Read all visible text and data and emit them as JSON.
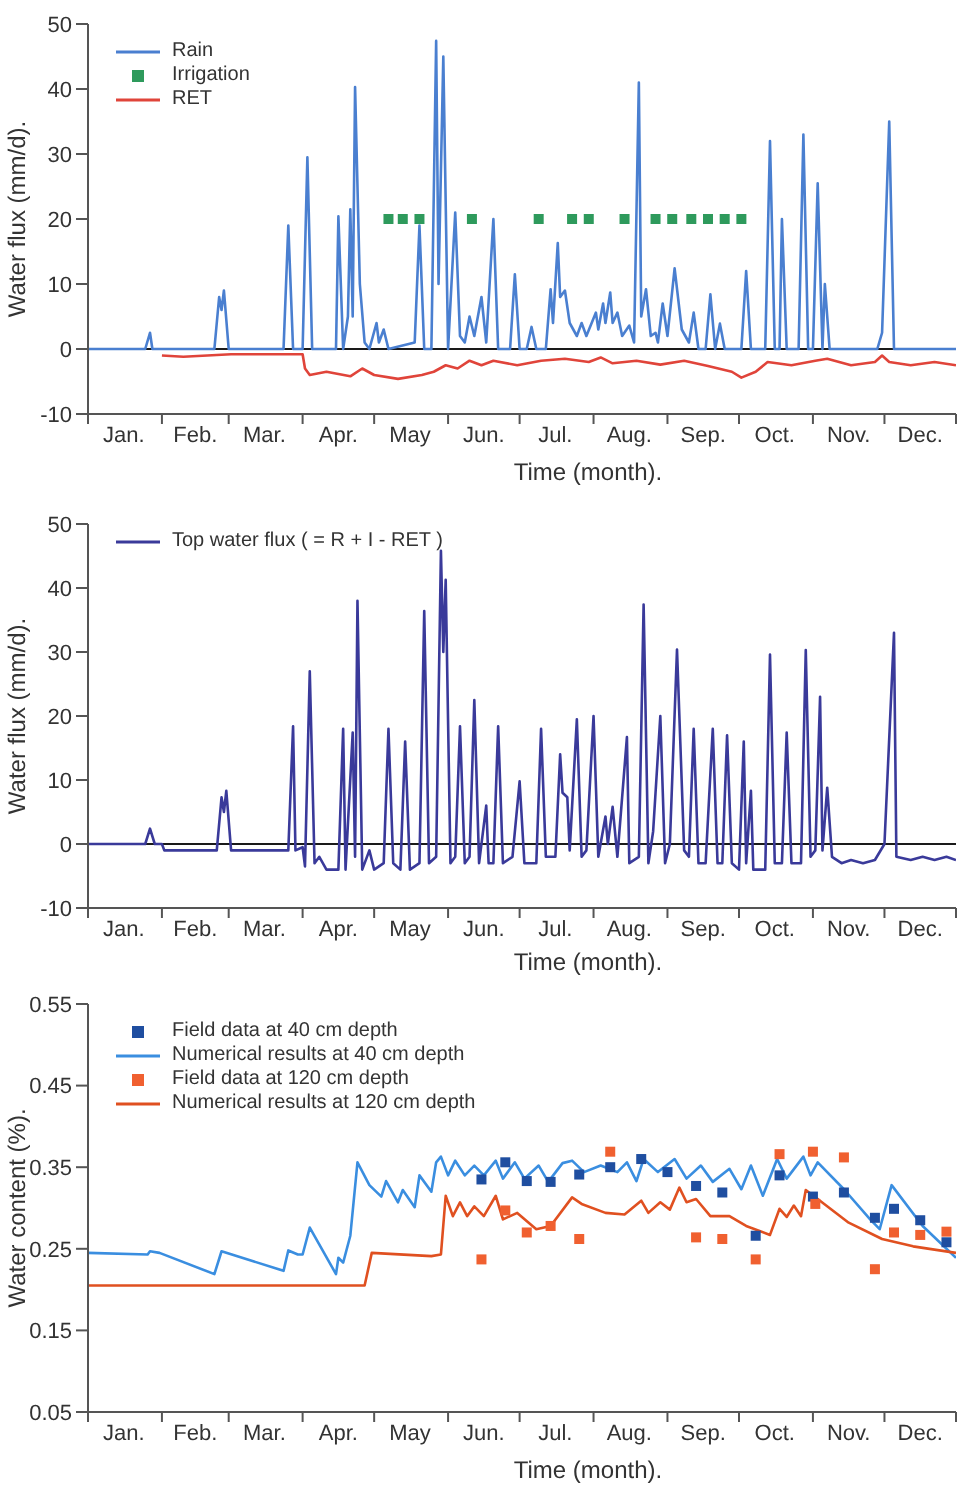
{
  "chart_data": [
    {
      "type": "line",
      "xlabel": "Time (month).",
      "ylabel": "Water flux (mm/d).",
      "xlim": [
        "--01-01",
        "--12-31"
      ],
      "xticks": [
        {
          "value": "--01-01",
          "label": null
        },
        {
          "value": "--01-16",
          "label": "Jan."
        },
        {
          "value": "--02-01",
          "label": null
        },
        {
          "value": "--02-15",
          "label": "Feb."
        },
        {
          "value": "--03-01",
          "label": null
        },
        {
          "value": "--03-16",
          "label": "Mar."
        },
        {
          "value": "--04-01",
          "label": null
        },
        {
          "value": "--04-16",
          "label": "Apr."
        },
        {
          "value": "--05-01",
          "label": null
        },
        {
          "value": "--05-16",
          "label": "May"
        },
        {
          "value": "--06-01",
          "label": null
        },
        {
          "value": "--06-16",
          "label": "Jun."
        },
        {
          "value": "--07-01",
          "label": null
        },
        {
          "value": "--07-16",
          "label": "Jul."
        },
        {
          "value": "--08-01",
          "label": null
        },
        {
          "value": "--08-16",
          "label": "Aug."
        },
        {
          "value": "--09-01",
          "label": null
        },
        {
          "value": "--09-16",
          "label": "Sep."
        },
        {
          "value": "--10-01",
          "label": null
        },
        {
          "value": "--10-16",
          "label": "Oct."
        },
        {
          "value": "--11-01",
          "label": null
        },
        {
          "value": "--11-16",
          "label": "Nov."
        },
        {
          "value": "--12-01",
          "label": null
        },
        {
          "value": "--12-16",
          "label": "Dec."
        },
        {
          "value": "--12-31",
          "label": null
        }
      ],
      "ylim": [
        -10,
        50
      ],
      "yticks": [
        -10,
        0,
        10,
        20,
        30,
        40,
        50
      ],
      "legend": "top left",
      "ref_lines": [
        {
          "axis": "y",
          "value": 0,
          "color": "#1a1a1a"
        }
      ],
      "series": [
        {
          "name": "Rain",
          "color": "#4a7fd0",
          "x": [
            "--01-01",
            "--01-25",
            "--01-27",
            "--01-28",
            "--02-23",
            "--02-25",
            "--02-26",
            "--02-27",
            "--03-01",
            "--03-24",
            "--03-26",
            "--03-28",
            "--04-01",
            "--04-03",
            "--04-05",
            "--04-15",
            "--04-16",
            "--04-18",
            "--04-20",
            "--04-21",
            "--04-22",
            "--04-23",
            "--04-25",
            "--04-27",
            "--04-29",
            "--05-02",
            "--05-03",
            "--05-05",
            "--05-07",
            "--05-18",
            "--05-20",
            "--05-22",
            "--05-25",
            "--05-27",
            "--05-28",
            "--05-30",
            "--06-01",
            "--06-04",
            "--06-06",
            "--06-08",
            "--06-10",
            "--06-12",
            "--06-15",
            "--06-17",
            "--06-20",
            "--06-22",
            "--06-27",
            "--06-29",
            "--07-01",
            "--07-04",
            "--07-06",
            "--07-08",
            "--07-12",
            "--07-14",
            "--07-15",
            "--07-17",
            "--07-18",
            "--07-20",
            "--07-22",
            "--07-25",
            "--07-27",
            "--07-29",
            "--08-02",
            "--08-03",
            "--08-05",
            "--08-06",
            "--08-08",
            "--08-09",
            "--08-11",
            "--08-13",
            "--08-16",
            "--08-18",
            "--08-20",
            "--08-21",
            "--08-23",
            "--08-25",
            "--08-27",
            "--08-28",
            "--08-30",
            "--09-01",
            "--09-04",
            "--09-07",
            "--09-10",
            "--09-12",
            "--09-14",
            "--09-17",
            "--09-19",
            "--09-21",
            "--09-23",
            "--09-25",
            "--10-02",
            "--10-04",
            "--10-06",
            "--10-12",
            "--10-14",
            "--10-16",
            "--10-18",
            "--10-19",
            "--10-21",
            "--10-26",
            "--10-28",
            "--10-30",
            "--11-01",
            "--11-03",
            "--11-05",
            "--11-06",
            "--11-08",
            "--11-28",
            "--11-30",
            "--12-03",
            "--12-05",
            "--12-31"
          ],
          "values": [
            0,
            0,
            2.5,
            0,
            0,
            8,
            6,
            9,
            0,
            0,
            19,
            0,
            0,
            29.5,
            0,
            0,
            20.4,
            0,
            5,
            21.5,
            5,
            40.3,
            10,
            1,
            0,
            4,
            1,
            3,
            0,
            1,
            19,
            0,
            0,
            47.4,
            10,
            45,
            0,
            21,
            2,
            1,
            5,
            2,
            8,
            1,
            20,
            0,
            0,
            11.5,
            0,
            0,
            3.4,
            0,
            0,
            9.2,
            4,
            16.3,
            8,
            9,
            4,
            2,
            4,
            2,
            5.6,
            3,
            7,
            4,
            8.7,
            4,
            5.6,
            2,
            3.6,
            1,
            41,
            5,
            9.2,
            2,
            2.5,
            1,
            7,
            2,
            12.4,
            3,
            1,
            5.6,
            0,
            0,
            8.4,
            0,
            3.9,
            0,
            0,
            12,
            0,
            0,
            32,
            0,
            0,
            20,
            0,
            0,
            33,
            0,
            0,
            25.5,
            0,
            10,
            0,
            0,
            2.5,
            35,
            0,
            0
          ]
        },
        {
          "name": "Irrigation",
          "type": "scatter",
          "marker": "square",
          "color": "#2e9a5c",
          "x": [
            "--05-07",
            "--05-13",
            "--05-20",
            "--06-11",
            "--07-09",
            "--07-23",
            "--07-30",
            "--08-14",
            "--08-27",
            "--09-03",
            "--09-11",
            "--09-18",
            "--09-25",
            "--10-02"
          ],
          "values": [
            20,
            20,
            20,
            20,
            20,
            20,
            20,
            20,
            20,
            20,
            20,
            20,
            20,
            20
          ]
        },
        {
          "name": "RET",
          "color": "#e0443a",
          "x": [
            "--02-01",
            "--02-10",
            "--03-02",
            "--04-01",
            "--04-02",
            "--04-04",
            "--04-11",
            "--04-21",
            "--04-26",
            "--05-01",
            "--05-11",
            "--05-21",
            "--05-26",
            "--05-31",
            "--06-05",
            "--06-10",
            "--06-15",
            "--06-20",
            "--06-30",
            "--07-10",
            "--07-20",
            "--07-30",
            "--08-04",
            "--08-09",
            "--08-19",
            "--08-29",
            "--09-08",
            "--09-18",
            "--09-28",
            "--10-02",
            "--10-08",
            "--10-13",
            "--10-23",
            "--11-02",
            "--11-07",
            "--11-17",
            "--11-27",
            "--11-30",
            "--12-03",
            "--12-12",
            "--12-22",
            "--12-31"
          ],
          "values": [
            -1,
            -1.2,
            -0.8,
            -0.8,
            -3,
            -4,
            -3.5,
            -4.2,
            -3,
            -4,
            -4.6,
            -4,
            -3.5,
            -2.5,
            -3,
            -1.8,
            -2.5,
            -1.8,
            -2.5,
            -1.8,
            -1.5,
            -2,
            -1.3,
            -2.2,
            -1.8,
            -2.4,
            -1.8,
            -2.6,
            -3.5,
            -4.4,
            -3.5,
            -2,
            -2.5,
            -1.8,
            -1.5,
            -2.5,
            -2,
            -1,
            -2,
            -2.5,
            -2,
            -2.5
          ]
        }
      ]
    },
    {
      "type": "line",
      "xlabel": "Time (month).",
      "ylabel": "Water flux (mm/d).",
      "xlim": [
        "--01-01",
        "--12-31"
      ],
      "xticks": [
        {
          "value": "--01-01",
          "label": null
        },
        {
          "value": "--01-16",
          "label": "Jan."
        },
        {
          "value": "--02-01",
          "label": null
        },
        {
          "value": "--02-15",
          "label": "Feb."
        },
        {
          "value": "--03-01",
          "label": null
        },
        {
          "value": "--03-16",
          "label": "Mar."
        },
        {
          "value": "--04-01",
          "label": null
        },
        {
          "value": "--04-16",
          "label": "Apr."
        },
        {
          "value": "--05-01",
          "label": null
        },
        {
          "value": "--05-16",
          "label": "May"
        },
        {
          "value": "--06-01",
          "label": null
        },
        {
          "value": "--06-16",
          "label": "Jun."
        },
        {
          "value": "--07-01",
          "label": null
        },
        {
          "value": "--07-16",
          "label": "Jul."
        },
        {
          "value": "--08-01",
          "label": null
        },
        {
          "value": "--08-16",
          "label": "Aug."
        },
        {
          "value": "--09-01",
          "label": null
        },
        {
          "value": "--09-16",
          "label": "Sep."
        },
        {
          "value": "--10-01",
          "label": null
        },
        {
          "value": "--10-16",
          "label": "Oct."
        },
        {
          "value": "--11-01",
          "label": null
        },
        {
          "value": "--11-16",
          "label": "Nov."
        },
        {
          "value": "--12-01",
          "label": null
        },
        {
          "value": "--12-16",
          "label": "Dec."
        },
        {
          "value": "--12-31",
          "label": null
        }
      ],
      "ylim": [
        -10,
        50
      ],
      "yticks": [
        -10,
        0,
        10,
        20,
        30,
        40,
        50
      ],
      "legend": "top left",
      "ref_lines": [
        {
          "axis": "y",
          "value": 0,
          "color": "#1a1a1a"
        }
      ],
      "series": [
        {
          "name": "Top water flux ( = R + I - RET )",
          "color": "#3a3a9a",
          "x": [
            "--01-01",
            "--01-25",
            "--01-27",
            "--01-29",
            "--02-01",
            "--02-02",
            "--02-24",
            "--02-26",
            "--02-27",
            "--02-28",
            "--03-02",
            "--03-26",
            "--03-28",
            "--03-29",
            "--04-01",
            "--04-02",
            "--04-04",
            "--04-06",
            "--04-08",
            "--04-11",
            "--04-16",
            "--04-18",
            "--04-19",
            "--04-22",
            "--04-23",
            "--04-24",
            "--04-26",
            "--04-29",
            "--05-01",
            "--05-05",
            "--05-07",
            "--05-09",
            "--05-12",
            "--05-14",
            "--05-16",
            "--05-20",
            "--05-22",
            "--05-24",
            "--05-27",
            "--05-29",
            "--05-30",
            "--05-31",
            "--06-02",
            "--06-04",
            "--06-06",
            "--06-08",
            "--06-10",
            "--06-12",
            "--06-14",
            "--06-17",
            "--06-18",
            "--06-20",
            "--06-22",
            "--06-24",
            "--06-28",
            "--07-01",
            "--07-03",
            "--07-08",
            "--07-10",
            "--07-12",
            "--07-16",
            "--07-18",
            "--07-19",
            "--07-21",
            "--07-22",
            "--07-25",
            "--07-27",
            "--07-29",
            "--08-01",
            "--08-03",
            "--08-06",
            "--08-07",
            "--08-09",
            "--08-11",
            "--08-15",
            "--08-16",
            "--08-20",
            "--08-22",
            "--08-24",
            "--08-26",
            "--08-29",
            "--08-31",
            "--09-02",
            "--09-05",
            "--09-08",
            "--09-10",
            "--09-12",
            "--09-14",
            "--09-17",
            "--09-20",
            "--09-22",
            "--09-24",
            "--09-26",
            "--09-28",
            "--10-01",
            "--10-03",
            "--10-04",
            "--10-06",
            "--10-07",
            "--10-12",
            "--10-14",
            "--10-16",
            "--10-19",
            "--10-21",
            "--10-23",
            "--10-27",
            "--10-29",
            "--10-31",
            "--11-02",
            "--11-04",
            "--11-05",
            "--11-07",
            "--11-09",
            "--11-13",
            "--11-17",
            "--11-22",
            "--11-27",
            "--12-01",
            "--12-05",
            "--12-06",
            "--12-12",
            "--12-17",
            "--12-22",
            "--12-27",
            "--12-31"
          ],
          "values": [
            0,
            0,
            2.4,
            0,
            0,
            -1,
            -1,
            7.3,
            5,
            8.3,
            -1,
            -1,
            18.4,
            -1,
            -0.5,
            -3.5,
            27,
            -3,
            -2,
            -4,
            -4,
            18,
            -4,
            17.4,
            -2,
            38,
            -4,
            -1,
            -4,
            -3,
            18,
            -3,
            -4,
            16,
            -4,
            -3,
            36.4,
            -3,
            -2,
            45.8,
            30,
            41.3,
            -3,
            -2,
            18.4,
            -3,
            -2,
            22.5,
            -3,
            6,
            -3,
            -3,
            18.4,
            -3,
            -2,
            9.8,
            -3,
            -3,
            18,
            -2,
            -2,
            14,
            8,
            7.3,
            -1,
            19.5,
            -2,
            -1,
            20,
            -2,
            4.3,
            0,
            5.8,
            -2,
            16.7,
            -3,
            -2,
            37.4,
            -3,
            2,
            20,
            -3,
            0,
            30.4,
            -1,
            -2,
            18,
            -3,
            -3,
            18,
            -3,
            -3,
            17,
            -3,
            -4,
            16,
            -3,
            8.3,
            -4,
            -4,
            29.6,
            -3,
            -3,
            17.4,
            -3,
            -3,
            30.3,
            -2,
            -1,
            23,
            -1,
            8.8,
            -2,
            -3,
            -2.5,
            -3,
            -2.5,
            0,
            33,
            -2,
            -2.5,
            -2,
            -2.5,
            -2,
            -2.5
          ]
        }
      ]
    },
    {
      "type": "line",
      "xlabel": "Time (month).",
      "ylabel": "Water content (%).",
      "xlim": [
        "--01-01",
        "--12-31"
      ],
      "xticks": [
        {
          "value": "--01-01",
          "label": null
        },
        {
          "value": "--01-16",
          "label": "Jan."
        },
        {
          "value": "--02-01",
          "label": null
        },
        {
          "value": "--02-15",
          "label": "Feb."
        },
        {
          "value": "--03-01",
          "label": null
        },
        {
          "value": "--03-16",
          "label": "Mar."
        },
        {
          "value": "--04-01",
          "label": null
        },
        {
          "value": "--04-16",
          "label": "Apr."
        },
        {
          "value": "--05-01",
          "label": null
        },
        {
          "value": "--05-16",
          "label": "May"
        },
        {
          "value": "--06-01",
          "label": null
        },
        {
          "value": "--06-16",
          "label": "Jun."
        },
        {
          "value": "--07-01",
          "label": null
        },
        {
          "value": "--07-16",
          "label": "Jul."
        },
        {
          "value": "--08-01",
          "label": null
        },
        {
          "value": "--08-16",
          "label": "Aug."
        },
        {
          "value": "--09-01",
          "label": null
        },
        {
          "value": "--09-16",
          "label": "Sep."
        },
        {
          "value": "--10-01",
          "label": null
        },
        {
          "value": "--10-16",
          "label": "Oct."
        },
        {
          "value": "--11-01",
          "label": null
        },
        {
          "value": "--11-16",
          "label": "Nov."
        },
        {
          "value": "--12-01",
          "label": null
        },
        {
          "value": "--12-16",
          "label": "Dec."
        },
        {
          "value": "--12-31",
          "label": null
        }
      ],
      "ylim": [
        0.05,
        0.55
      ],
      "yticks": [
        0.05,
        0.15,
        0.25,
        0.35,
        0.45,
        0.55
      ],
      "legend": "top left",
      "series": [
        {
          "name": "Field data at 40 cm depth",
          "type": "scatter",
          "marker": "square",
          "color": "#1f4ea0",
          "x": [
            "--06-15",
            "--06-25",
            "--07-04",
            "--07-14",
            "--07-26",
            "--08-08",
            "--08-21",
            "--09-01",
            "--09-13",
            "--09-24",
            "--10-08",
            "--10-18",
            "--11-01",
            "--11-14",
            "--11-27",
            "--12-05",
            "--12-16",
            "--12-27"
          ],
          "values": [
            0.335,
            0.356,
            0.333,
            0.332,
            0.341,
            0.35,
            0.36,
            0.344,
            0.327,
            0.319,
            0.266,
            0.34,
            0.314,
            0.319,
            0.288,
            0.299,
            0.285,
            0.258
          ]
        },
        {
          "name": "Numerical results at 40 cm depth",
          "color": "#3a8ee0",
          "x": [
            "--01-01",
            "--01-26",
            "--01-27",
            "--01-31",
            "--02-23",
            "--02-26",
            "--03-24",
            "--03-26",
            "--03-30",
            "--04-01",
            "--04-04",
            "--04-15",
            "--04-16",
            "--04-18",
            "--04-21",
            "--04-24",
            "--04-29",
            "--05-04",
            "--05-06",
            "--05-11",
            "--05-13",
            "--05-18",
            "--05-20",
            "--05-25",
            "--05-27",
            "--05-29",
            "--06-01",
            "--06-04",
            "--06-08",
            "--06-12",
            "--06-16",
            "--06-21",
            "--06-24",
            "--06-29",
            "--07-03",
            "--07-09",
            "--07-13",
            "--07-19",
            "--07-23",
            "--07-28",
            "--08-04",
            "--08-11",
            "--08-15",
            "--08-19",
            "--08-22",
            "--08-28",
            "--09-04",
            "--09-09",
            "--09-15",
            "--09-20",
            "--09-27",
            "--10-02",
            "--10-06",
            "--10-11",
            "--10-17",
            "--10-21",
            "--10-28",
            "--10-31",
            "--11-03",
            "--11-14",
            "--11-25",
            "--11-29",
            "--12-04",
            "--12-17",
            "--12-31"
          ],
          "values": [
            0.245,
            0.243,
            0.247,
            0.245,
            0.219,
            0.247,
            0.223,
            0.248,
            0.243,
            0.243,
            0.276,
            0.219,
            0.239,
            0.233,
            0.266,
            0.356,
            0.328,
            0.314,
            0.333,
            0.307,
            0.322,
            0.301,
            0.34,
            0.32,
            0.356,
            0.363,
            0.34,
            0.358,
            0.34,
            0.352,
            0.34,
            0.358,
            0.336,
            0.356,
            0.336,
            0.352,
            0.332,
            0.355,
            0.358,
            0.344,
            0.352,
            0.344,
            0.356,
            0.333,
            0.36,
            0.344,
            0.36,
            0.336,
            0.352,
            0.332,
            0.348,
            0.323,
            0.352,
            0.315,
            0.36,
            0.336,
            0.363,
            0.34,
            0.356,
            0.323,
            0.286,
            0.274,
            0.328,
            0.278,
            0.239
          ]
        },
        {
          "name": "Field data at 120 cm depth",
          "type": "scatter",
          "marker": "square",
          "color": "#f06030",
          "x": [
            "--06-15",
            "--06-25",
            "--07-04",
            "--07-14",
            "--07-26",
            "--08-08",
            "--09-13",
            "--09-24",
            "--10-08",
            "--10-18",
            "--11-01",
            "--11-02",
            "--11-14",
            "--11-27",
            "--12-05",
            "--12-16",
            "--12-27"
          ],
          "values": [
            0.237,
            0.297,
            0.27,
            0.278,
            0.262,
            0.369,
            0.264,
            0.262,
            0.237,
            0.366,
            0.369,
            0.305,
            0.362,
            0.225,
            0.27,
            0.267,
            0.271
          ]
        },
        {
          "name": "Numerical results at 120 cm depth",
          "color": "#e05020",
          "x": [
            "--01-01",
            "--04-27",
            "--04-30",
            "--05-25",
            "--05-29",
            "--05-31",
            "--06-03",
            "--06-06",
            "--06-09",
            "--06-12",
            "--06-16",
            "--06-21",
            "--06-24",
            "--06-30",
            "--07-08",
            "--07-14",
            "--07-23",
            "--07-27",
            "--08-06",
            "--08-14",
            "--08-21",
            "--08-24",
            "--08-29",
            "--09-02",
            "--09-06",
            "--09-09",
            "--09-13",
            "--09-19",
            "--09-27",
            "--10-04",
            "--10-14",
            "--10-18",
            "--10-21",
            "--10-24",
            "--10-27",
            "--10-29",
            "--11-03",
            "--11-16",
            "--11-30",
            "--12-13",
            "--12-31"
          ],
          "values": [
            0.205,
            0.205,
            0.245,
            0.241,
            0.243,
            0.315,
            0.29,
            0.307,
            0.29,
            0.302,
            0.29,
            0.315,
            0.286,
            0.294,
            0.274,
            0.278,
            0.313,
            0.305,
            0.294,
            0.292,
            0.309,
            0.294,
            0.307,
            0.298,
            0.325,
            0.307,
            0.311,
            0.29,
            0.29,
            0.278,
            0.267,
            0.299,
            0.289,
            0.303,
            0.29,
            0.322,
            0.311,
            0.282,
            0.262,
            0.253,
            0.245
          ]
        }
      ]
    }
  ]
}
